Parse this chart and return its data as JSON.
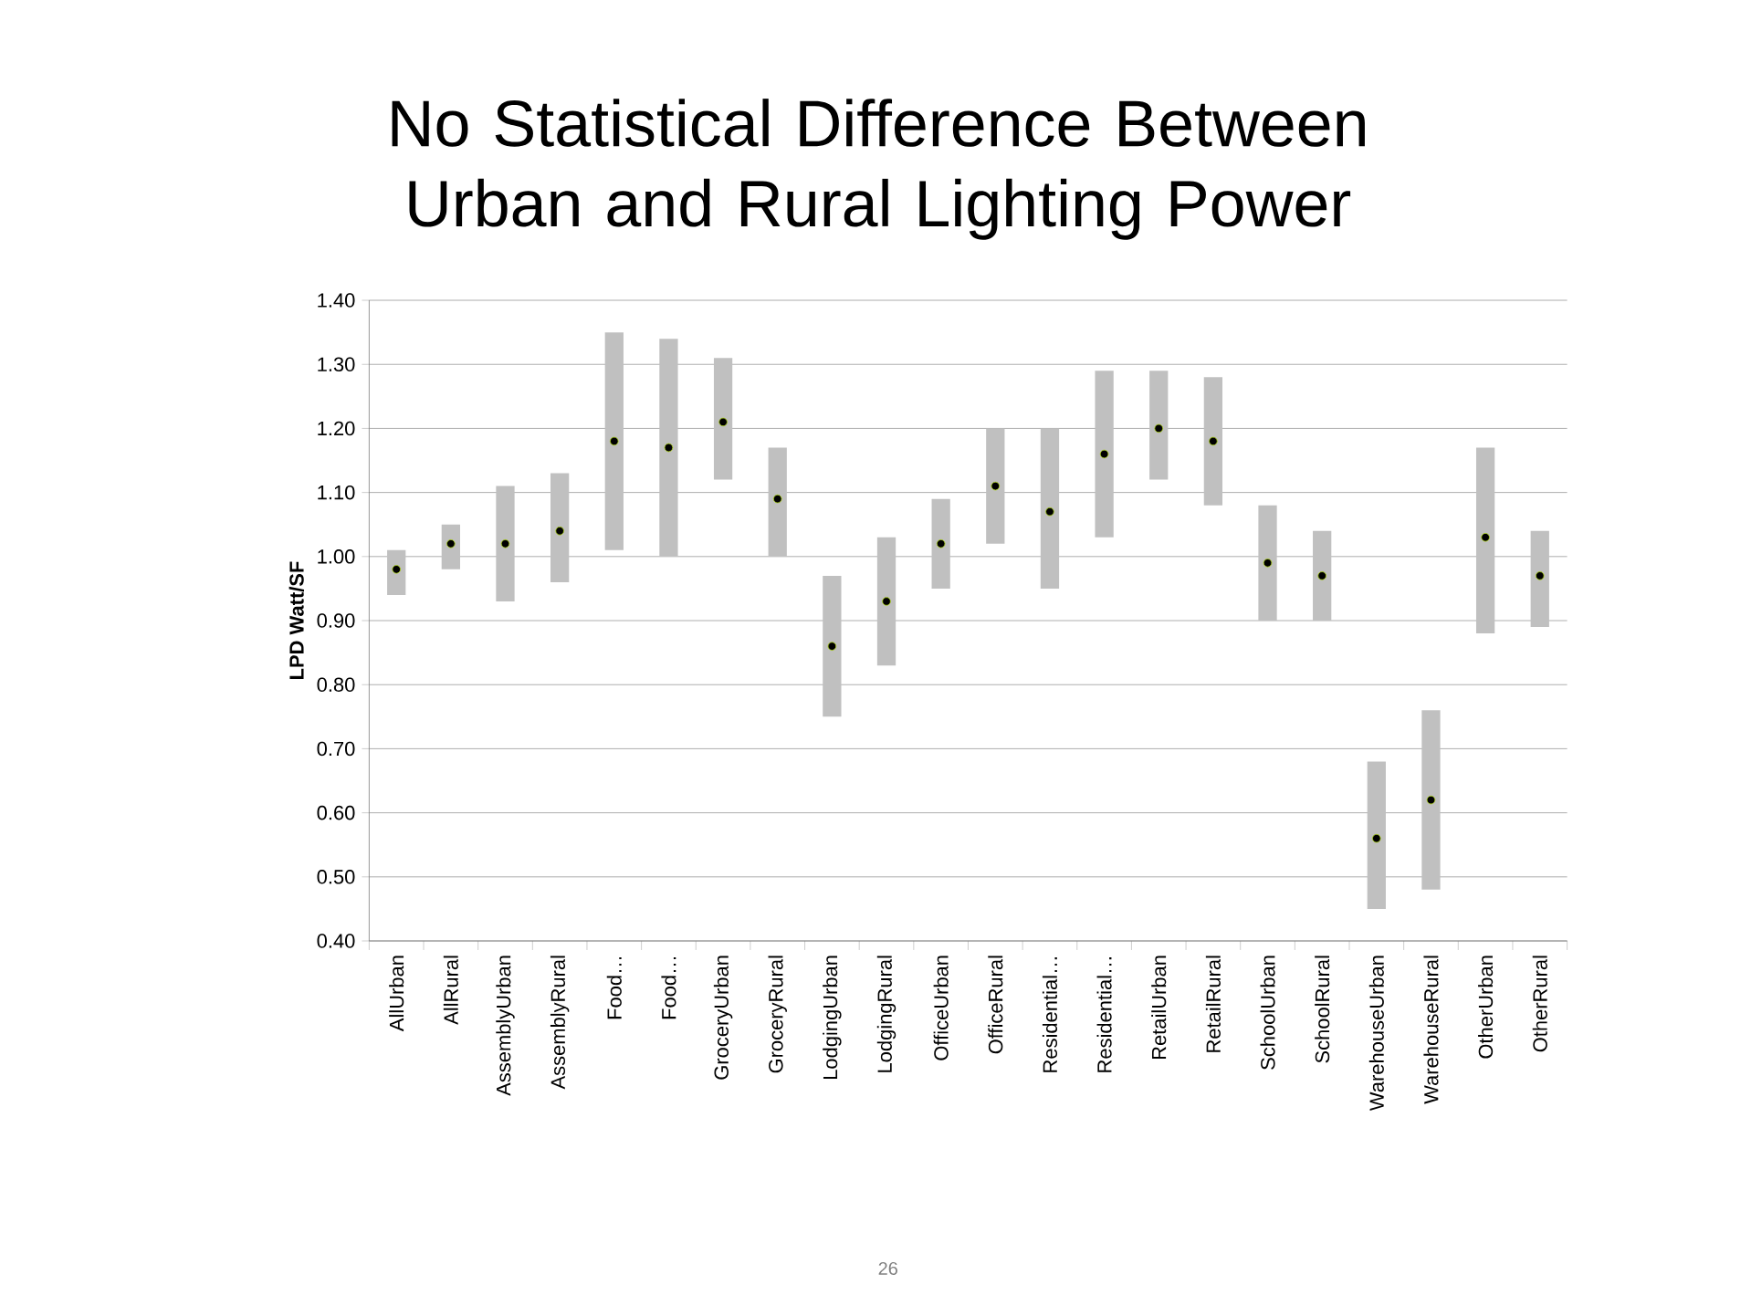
{
  "chart_data": {
    "type": "bar",
    "title": "No Statistical Difference Between Urban and Rural Lighting Power",
    "ylabel": "LPD  Watt/SF",
    "categories": [
      "AllUrban",
      "AllRural",
      "AssemblyUrban",
      "AssemblyRural",
      "Food…",
      "Food…",
      "GroceryUrban",
      "GroceryRural",
      "LodgingUrban",
      "LodgingRural",
      "OfficeUrban",
      "OfficeRural",
      "Residential…",
      "Residential…",
      "RetailUrban",
      "RetailRural",
      "SchoolUrban",
      "SchoolRural",
      "WarehouseUrban",
      "WarehouseRural",
      "OtherUrban",
      "OtherRural"
    ],
    "series": [
      {
        "color": "#c0c0c0",
        "base": [
          0.94,
          0.98,
          0.93,
          0.96,
          1.01,
          1.0,
          1.12,
          1.0,
          0.75,
          0.83,
          0.95,
          1.02,
          0.95,
          1.03,
          1.12,
          1.08,
          0.9,
          0.9,
          0.45,
          0.48,
          0.88,
          0.89
        ],
        "values": [
          0.07,
          0.07,
          0.18,
          0.17,
          0.34,
          0.34,
          0.19,
          0.17,
          0.22,
          0.2,
          0.14,
          0.18,
          0.25,
          0.26,
          0.17,
          0.2,
          0.18,
          0.14,
          0.23,
          0.28,
          0.29,
          0.15
        ]
      },
      {
        "type": "scatter",
        "color": "#000000",
        "values": [
          0.98,
          1.02,
          1.02,
          1.04,
          1.18,
          1.17,
          1.21,
          1.09,
          0.86,
          0.93,
          1.02,
          1.11,
          1.07,
          1.16,
          1.2,
          1.18,
          0.99,
          0.97,
          0.56,
          0.62,
          1.03,
          0.97
        ]
      }
    ],
    "ylim": [
      0.4,
      1.4
    ],
    "yticks": [
      {
        "value": 0.4,
        "label": "0.40"
      },
      {
        "value": 0.5,
        "label": "0.50"
      },
      {
        "value": 0.6,
        "label": "0.60"
      },
      {
        "value": 0.7,
        "label": "0.70"
      },
      {
        "value": 0.8,
        "label": "0.80"
      },
      {
        "value": 0.9,
        "label": "0.90"
      },
      {
        "value": 1.0,
        "label": "1.00"
      },
      {
        "value": 1.1,
        "label": "1.10"
      },
      {
        "value": 1.2,
        "label": "1.20"
      },
      {
        "value": 1.3,
        "label": "1.30"
      },
      {
        "value": 1.4,
        "label": "1.40"
      }
    ],
    "grid": "y",
    "marker": "circle",
    "annotations": [
      "26"
    ]
  }
}
